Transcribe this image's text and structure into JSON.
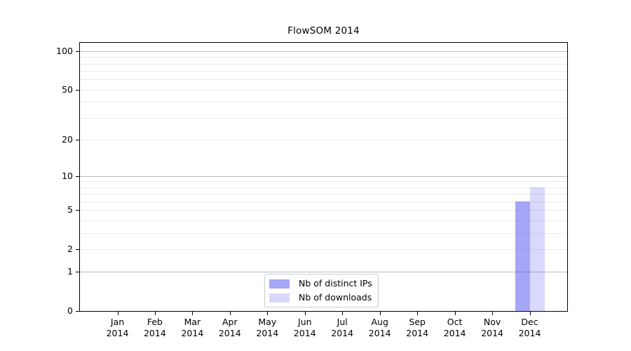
{
  "title": "FlowSOM 2014",
  "chart_data": {
    "type": "bar",
    "title": "FlowSOM 2014",
    "categories": [
      "Jan\n2014",
      "Feb\n2014",
      "Mar\n2014",
      "Apr\n2014",
      "May\n2014",
      "Jun\n2014",
      "Jul\n2014",
      "Aug\n2014",
      "Sep\n2014",
      "Oct\n2014",
      "Nov\n2014",
      "Dec\n2014"
    ],
    "series": [
      {
        "name": "Nb of distinct IPs",
        "color": "rgba(80,80,240,0.51)",
        "values": [
          0,
          0,
          0,
          0,
          0,
          0,
          0,
          0,
          0,
          0,
          0,
          6
        ]
      },
      {
        "name": "Nb of downloads",
        "color": "rgba(80,80,240,0.22)",
        "values": [
          0,
          0,
          0,
          0,
          0,
          0,
          0,
          0,
          0,
          0,
          0,
          8
        ]
      }
    ],
    "yscale": "log1p",
    "ylim": [
      0,
      115
    ],
    "yticks": [
      0,
      1,
      2,
      5,
      10,
      20,
      50,
      100
    ],
    "gridlines": {
      "major": [
        1,
        10,
        100
      ],
      "minor": [
        2,
        3,
        4,
        5,
        6,
        7,
        8,
        9,
        20,
        30,
        40,
        50,
        60,
        70,
        80,
        90
      ]
    },
    "grid": true,
    "xlabel": "",
    "ylabel": "",
    "legend_position": "bottom-center"
  },
  "colors": {
    "bar_distinct_ips": "rgba(80,80,240,0.51)",
    "bar_downloads": "rgba(80,80,240,0.22)",
    "grid_major": "#bdbdbd",
    "grid_minor": "#eaeaea",
    "spine": "#000000"
  }
}
